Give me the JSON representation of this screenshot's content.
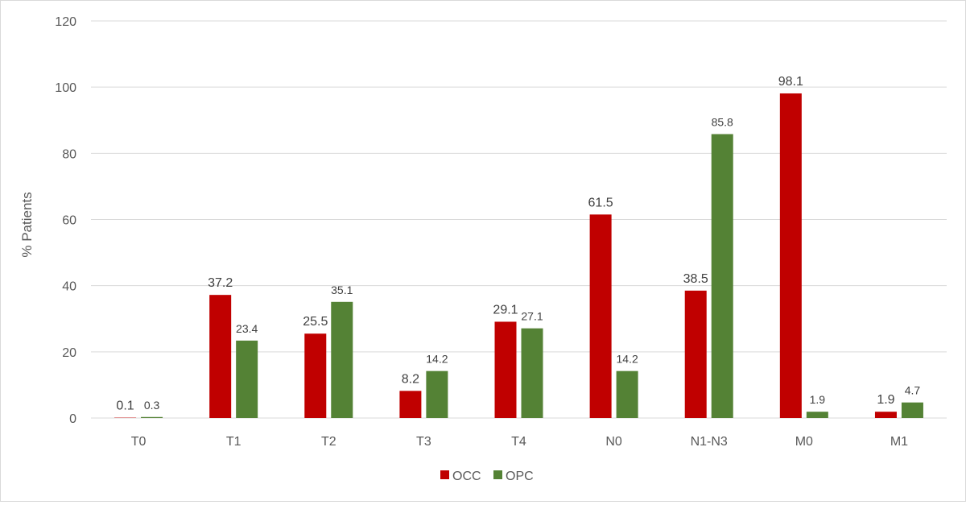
{
  "chart_data": {
    "type": "bar",
    "title": "",
    "xlabel": "",
    "ylabel": "% Patients",
    "ylim": [
      0,
      120
    ],
    "yticks": [
      0,
      20,
      40,
      60,
      80,
      100,
      120
    ],
    "grid": true,
    "legend_position": "bottom",
    "categories": [
      "T0",
      "T1",
      "T2",
      "T3",
      "T4",
      "N0",
      "N1-N3",
      "M0",
      "M1"
    ],
    "series": [
      {
        "name": "OCC",
        "color": "#c00000",
        "values": [
          0.1,
          37.2,
          25.5,
          8.2,
          29.1,
          61.5,
          38.5,
          98.1,
          1.9
        ],
        "labels": [
          "0.1",
          "37.2",
          "25.5",
          "8.2",
          "29.1",
          "61.5",
          "38.5",
          "98.1",
          "1.9"
        ]
      },
      {
        "name": "OPC",
        "color": "#548235",
        "values": [
          0.3,
          23.4,
          35.1,
          14.2,
          27.1,
          14.2,
          85.8,
          1.9,
          4.7
        ],
        "labels": [
          "0.3",
          "23.4",
          "35.1",
          "14.2",
          "27.1",
          "14.2",
          "85.8",
          "1.9",
          "4.7"
        ]
      }
    ]
  }
}
